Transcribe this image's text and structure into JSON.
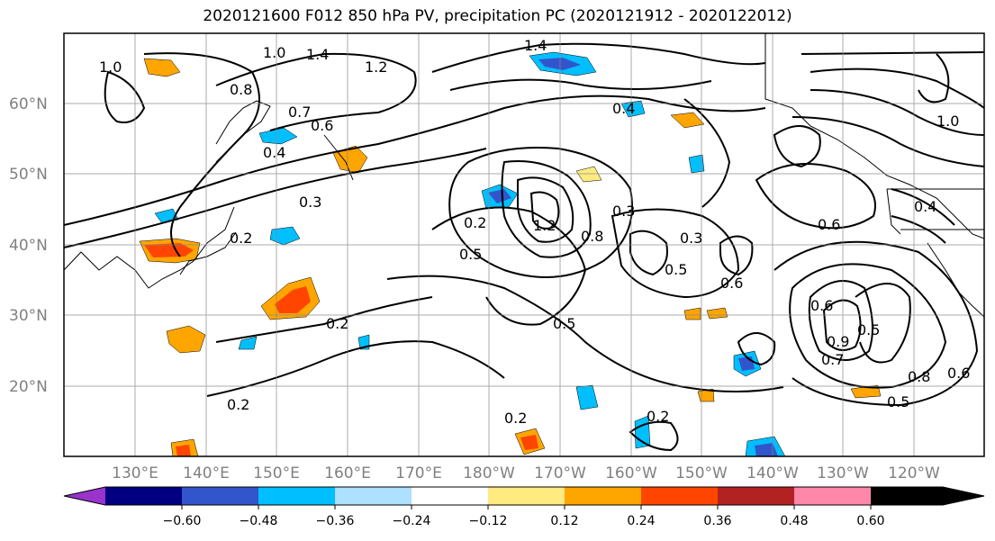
{
  "title": "2020121600 F012 850 hPa PV, precipitation PC (2020121912 - 2020122012)",
  "lat_labels": [
    "60°N",
    "50°N",
    "40°N",
    "30°N",
    "20°N"
  ],
  "lon_labels": [
    "130°E",
    "140°E",
    "150°E",
    "160°E",
    "170°E",
    "180°W",
    "170°W",
    "160°W",
    "150°W",
    "140°W",
    "130°W",
    "120°W"
  ],
  "contour_labels": [
    "1.0",
    "1.4",
    "1.2",
    "0.8",
    "0.6",
    "0.4",
    "0.3",
    "0.2",
    "0.5",
    "0.7",
    "1.0",
    "0.4",
    "0.3",
    "0.2",
    "0.2",
    "0.5",
    "1.2",
    "0.8",
    "0.3",
    "0.5",
    "0.6",
    "0.2",
    "0.5",
    "0.2",
    "0.6",
    "0.9",
    "0.7",
    "0.8",
    "0.5",
    "0.6",
    "0.6",
    "1.4",
    "1.0",
    "0.4",
    "0.2"
  ],
  "colorbar": {
    "tick_labels": [
      "−0.60",
      "−0.48",
      "−0.36",
      "−0.24",
      "−0.12",
      "0.12",
      "0.24",
      "0.36",
      "0.48",
      "0.60"
    ],
    "colors": [
      "#9933cc",
      "#000080",
      "#3355cc",
      "#00bfff",
      "#aee0ff",
      "#ffffff",
      "#ffeb80",
      "#ffa500",
      "#ff4500",
      "#b22222",
      "#ff88aa"
    ]
  }
}
